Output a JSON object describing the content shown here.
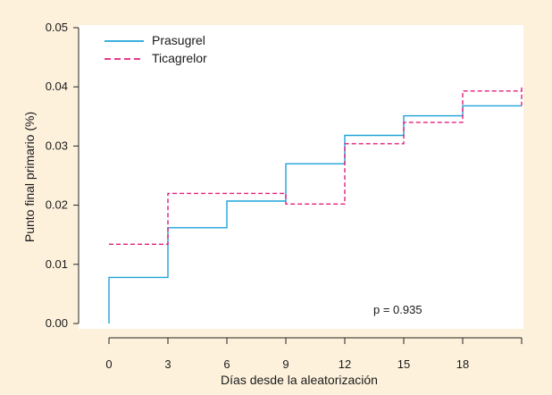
{
  "colors": {
    "background": "#fdf1dc",
    "plot_background": "#ffffff",
    "axis": "#222222"
  },
  "chart_data": {
    "type": "line",
    "step": true,
    "xlabel": "Días desde la aleatorización",
    "ylabel": "Punto final primario (%)",
    "xlim": [
      0,
      21
    ],
    "ylim": [
      0,
      0.05
    ],
    "xticks": [
      0,
      3,
      6,
      9,
      12,
      15,
      18
    ],
    "yticks": [
      0.0,
      0.01,
      0.02,
      0.03,
      0.04,
      0.05
    ],
    "ytick_labels": [
      "0.00",
      "0.01",
      "0.02",
      "0.03",
      "0.04",
      "0.05"
    ],
    "grid": false,
    "legend": "top-left",
    "annotation": "p = 0.935",
    "series": [
      {
        "name": "Prasugrel",
        "color": "#1fa2d8",
        "dash": "solid",
        "x": [
          0,
          0,
          3,
          6,
          9,
          12,
          15,
          18,
          21
        ],
        "y": [
          0.0,
          0.0078,
          0.0162,
          0.0207,
          0.027,
          0.0318,
          0.0351,
          0.0368,
          0.0368
        ]
      },
      {
        "name": "Ticagrelor",
        "color": "#e0207a",
        "dash": "dashed",
        "x": [
          0,
          3,
          9,
          12,
          15,
          18,
          21,
          21
        ],
        "y": [
          0.0134,
          0.022,
          0.0202,
          0.0304,
          0.034,
          0.0393,
          0.0401,
          0.0368
        ]
      }
    ]
  }
}
